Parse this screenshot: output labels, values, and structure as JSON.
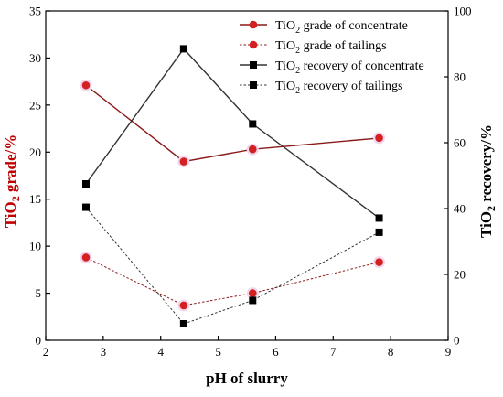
{
  "chart_data": {
    "type": "line",
    "title": "",
    "xlabel": "pH of slurry",
    "ylabel_left": {
      "main": "TiO",
      "sub": "2",
      "rest": " grade/%"
    },
    "ylabel_right": {
      "main": "TiO",
      "sub": "2",
      "rest": " recovery/%"
    },
    "xlim": [
      2,
      9
    ],
    "ylim_left": [
      0,
      35
    ],
    "ylim_right": [
      0,
      100
    ],
    "x_ticks": [
      "2",
      "3",
      "4",
      "5",
      "6",
      "7",
      "8",
      "9"
    ],
    "y_left_ticks": [
      "0",
      "5",
      "10",
      "15",
      "20",
      "25",
      "30",
      "35"
    ],
    "y_right_ticks": [
      "0",
      "20",
      "40",
      "60",
      "80",
      "100"
    ],
    "grid": false,
    "legend_position": "top-right",
    "series": [
      {
        "name": {
          "main": "TiO",
          "sub": "2",
          "rest": " grade of concentrate"
        },
        "axis": "left",
        "x": [
          2.7,
          4.4,
          5.6,
          7.8
        ],
        "y": [
          27.1,
          19.0,
          20.3,
          21.5
        ],
        "color": "#8b1a1a",
        "marker_color": "#d42020",
        "marker": "circle",
        "dashed": false
      },
      {
        "name": {
          "main": "TiO",
          "sub": "2",
          "rest": " grade of tailings"
        },
        "axis": "left",
        "x": [
          2.7,
          4.4,
          5.6,
          7.8
        ],
        "y": [
          8.8,
          3.7,
          5.0,
          8.3
        ],
        "color": "#8b1a1a",
        "marker_color": "#d42020",
        "marker": "circle",
        "dashed": true
      },
      {
        "name": {
          "main": "TiO",
          "sub": "2",
          "rest": " recovery of concentrate"
        },
        "axis": "right",
        "x": [
          2.7,
          4.4,
          5.6,
          7.8
        ],
        "y": [
          47.5,
          88.5,
          65.7,
          37.1
        ],
        "color": "#333333",
        "marker_color": "#000000",
        "marker": "square",
        "dashed": false
      },
      {
        "name": {
          "main": "TiO",
          "sub": "2",
          "rest": " recovery of tailings"
        },
        "axis": "right",
        "x": [
          2.7,
          4.4,
          5.6,
          7.8
        ],
        "y": [
          40.4,
          5.0,
          12.1,
          32.8
        ],
        "color": "#333333",
        "marker_color": "#000000",
        "marker": "square",
        "dashed": true
      }
    ]
  }
}
